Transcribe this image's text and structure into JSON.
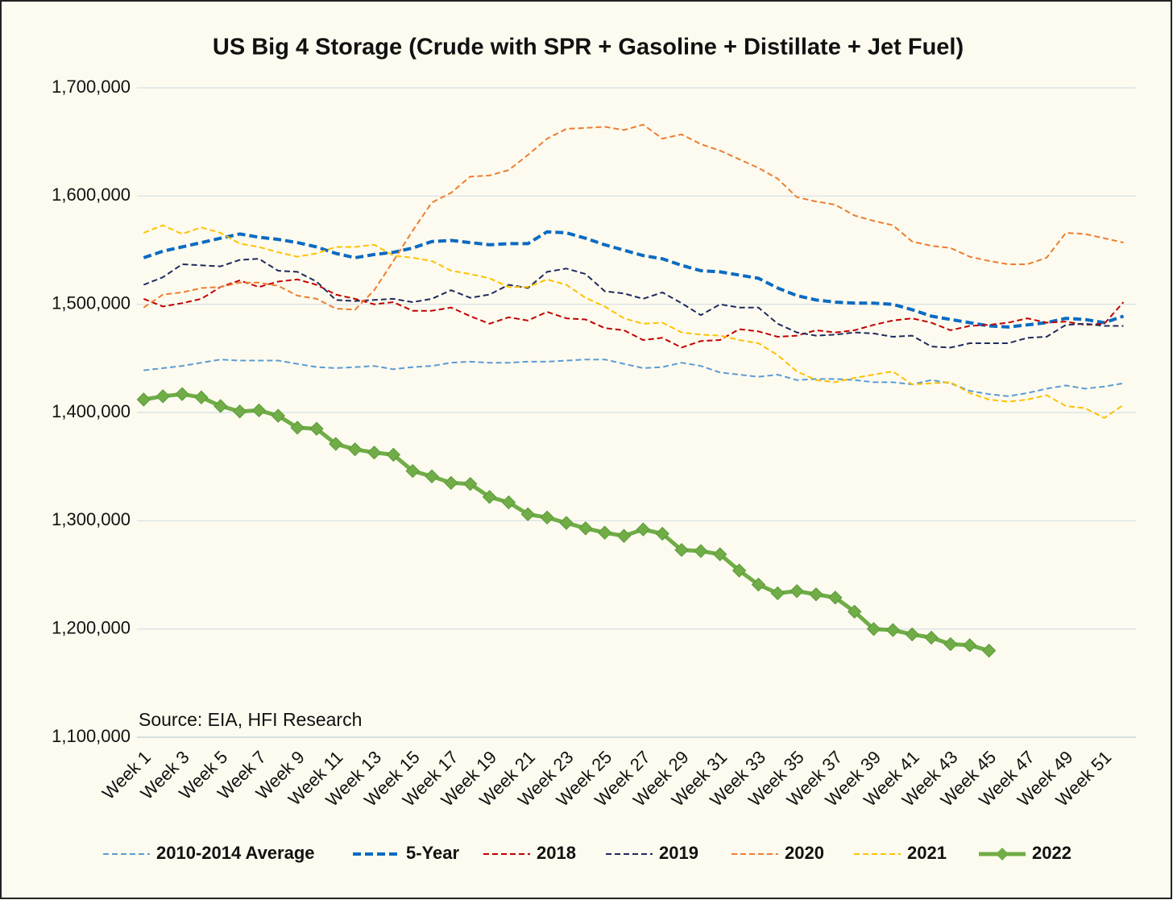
{
  "chart_data": {
    "type": "line",
    "title": "US Big 4 Storage (Crude with SPR + Gasoline + Distillate + Jet Fuel)",
    "annotation": "Source: EIA, HFI Research",
    "categories": [
      "Week 1",
      null,
      "Week 3",
      null,
      "Week 5",
      null,
      "Week 7",
      null,
      "Week 9",
      null,
      "Week 11",
      null,
      "Week 13",
      null,
      "Week 15",
      null,
      "Week 17",
      null,
      "Week 19",
      null,
      "Week 21",
      null,
      "Week 23",
      null,
      "Week 25",
      null,
      "Week 27",
      null,
      "Week 29",
      null,
      "Week 31",
      null,
      "Week 33",
      null,
      "Week 35",
      null,
      "Week 37",
      null,
      "Week 39",
      null,
      "Week 41",
      null,
      "Week 43",
      null,
      "Week 45",
      null,
      "Week 47",
      null,
      "Week 49",
      null,
      "Week 51",
      null
    ],
    "ylim": [
      1100000,
      1700000
    ],
    "yticks": [
      {
        "value": 1100000,
        "label": "1,100,000"
      },
      {
        "value": 1200000,
        "label": "1,200,000"
      },
      {
        "value": 1300000,
        "label": "1,300,000"
      },
      {
        "value": 1400000,
        "label": "1,400,000"
      },
      {
        "value": 1500000,
        "label": "1,500,000"
      },
      {
        "value": 1600000,
        "label": "1,600,000"
      },
      {
        "value": 1700000,
        "label": "1,700,000"
      }
    ],
    "grid": true,
    "legend": "bottom",
    "series": [
      {
        "name": "2010-2014 Average",
        "color": "#5b9bd5",
        "line_style": "dashed",
        "values": [
          1439000,
          1441000,
          1443000,
          1446000,
          1449000,
          1448000,
          1448000,
          1448000,
          1445000,
          1442000,
          1441000,
          1442000,
          1443000,
          1440000,
          1442000,
          1443000,
          1446000,
          1447000,
          1446000,
          1446000,
          1447000,
          1447000,
          1448000,
          1449000,
          1449000,
          1445000,
          1441000,
          1442000,
          1446000,
          1443000,
          1437000,
          1435000,
          1433000,
          1435000,
          1430000,
          1431000,
          1431000,
          1430000,
          1428000,
          1428000,
          1426000,
          1430000,
          1427000,
          1420000,
          1417000,
          1415000,
          1418000,
          1422000,
          1425000,
          1422000,
          1424000,
          1427000
        ]
      },
      {
        "name": "5-Year",
        "color": "#0a6bc2",
        "line_style": "dashed-thick",
        "values": [
          1543000,
          1549000,
          1553000,
          1557000,
          1561000,
          1565000,
          1562000,
          1560000,
          1557000,
          1553000,
          1547000,
          1543000,
          1546000,
          1548000,
          1552000,
          1558000,
          1559000,
          1557000,
          1555000,
          1556000,
          1556000,
          1567000,
          1566000,
          1561000,
          1555000,
          1550000,
          1545000,
          1542000,
          1536000,
          1531000,
          1530000,
          1527000,
          1524000,
          1515000,
          1508000,
          1504000,
          1502000,
          1501000,
          1501000,
          1500000,
          1495000,
          1489000,
          1486000,
          1483000,
          1480000,
          1479000,
          1481000,
          1483000,
          1487000,
          1486000,
          1483000,
          1489000
        ]
      },
      {
        "name": "2018",
        "color": "#c00000",
        "line_style": "dashed",
        "values": [
          1505000,
          1498000,
          1501000,
          1505000,
          1516000,
          1522000,
          1516000,
          1521000,
          1523000,
          1518000,
          1509000,
          1505000,
          1500000,
          1502000,
          1494000,
          1494000,
          1497000,
          1489000,
          1482000,
          1488000,
          1485000,
          1493000,
          1487000,
          1486000,
          1478000,
          1476000,
          1467000,
          1469000,
          1460000,
          1466000,
          1467000,
          1477000,
          1475000,
          1470000,
          1471000,
          1476000,
          1474000,
          1476000,
          1481000,
          1485000,
          1487000,
          1483000,
          1476000,
          1480000,
          1481000,
          1483000,
          1487000,
          1483000,
          1484000,
          1481000,
          1482000,
          1502000
        ]
      },
      {
        "name": "2019",
        "color": "#1f2a60",
        "line_style": "dashed",
        "values": [
          1518000,
          1525000,
          1537000,
          1536000,
          1535000,
          1541000,
          1542000,
          1531000,
          1530000,
          1521000,
          1504000,
          1503000,
          1504000,
          1505000,
          1502000,
          1505000,
          1513000,
          1506000,
          1509000,
          1518000,
          1515000,
          1530000,
          1533000,
          1528000,
          1512000,
          1510000,
          1505000,
          1511000,
          1501000,
          1490000,
          1500000,
          1497000,
          1497000,
          1482000,
          1474000,
          1471000,
          1472000,
          1474000,
          1473000,
          1470000,
          1471000,
          1461000,
          1460000,
          1464000,
          1464000,
          1464000,
          1469000,
          1470000,
          1481000,
          1482000,
          1480000,
          1480000
        ]
      },
      {
        "name": "2020",
        "color": "#ed7d31",
        "line_style": "dashed",
        "values": [
          1497000,
          1509000,
          1511000,
          1515000,
          1516000,
          1520000,
          1520000,
          1517000,
          1508000,
          1505000,
          1496000,
          1495000,
          1513000,
          1540000,
          1568000,
          1594000,
          1603000,
          1618000,
          1619000,
          1624000,
          1638000,
          1653000,
          1662000,
          1663000,
          1664000,
          1661000,
          1666000,
          1653000,
          1657000,
          1648000,
          1642000,
          1634000,
          1626000,
          1616000,
          1599000,
          1595000,
          1592000,
          1582000,
          1577000,
          1573000,
          1558000,
          1554000,
          1552000,
          1544000,
          1540000,
          1537000,
          1537000,
          1543000,
          1566000,
          1565000,
          1561000,
          1557000
        ]
      },
      {
        "name": "2021",
        "color": "#ffc000",
        "line_style": "dashed",
        "values": [
          1566000,
          1573000,
          1565000,
          1571000,
          1566000,
          1556000,
          1553000,
          1548000,
          1544000,
          1547000,
          1553000,
          1553000,
          1555000,
          1545000,
          1543000,
          1540000,
          1531000,
          1528000,
          1524000,
          1516000,
          1516000,
          1523000,
          1518000,
          1506000,
          1498000,
          1487000,
          1482000,
          1483000,
          1474000,
          1472000,
          1471000,
          1467000,
          1464000,
          1453000,
          1438000,
          1430000,
          1428000,
          1432000,
          1435000,
          1438000,
          1426000,
          1427000,
          1428000,
          1418000,
          1412000,
          1410000,
          1412000,
          1416000,
          1406000,
          1404000,
          1395000,
          1407000
        ]
      },
      {
        "name": "2022",
        "color": "#70ad47",
        "line_style": "solid",
        "marker": "diamond",
        "values": [
          1412000,
          1415000,
          1417000,
          1414000,
          1406000,
          1401000,
          1402000,
          1397000,
          1386000,
          1385000,
          1371000,
          1366000,
          1363000,
          1361000,
          1346000,
          1341000,
          1335000,
          1334000,
          1322000,
          1317000,
          1306000,
          1303000,
          1298000,
          1293000,
          1289000,
          1286000,
          1292000,
          1288000,
          1273000,
          1272000,
          1269000,
          1254000,
          1241000,
          1233000,
          1235000,
          1232000,
          1229000,
          1216000,
          1200000,
          1199000,
          1195000,
          1192000,
          1186000,
          1185000,
          1180000,
          null,
          null,
          null,
          null,
          null,
          null,
          null
        ]
      }
    ]
  }
}
